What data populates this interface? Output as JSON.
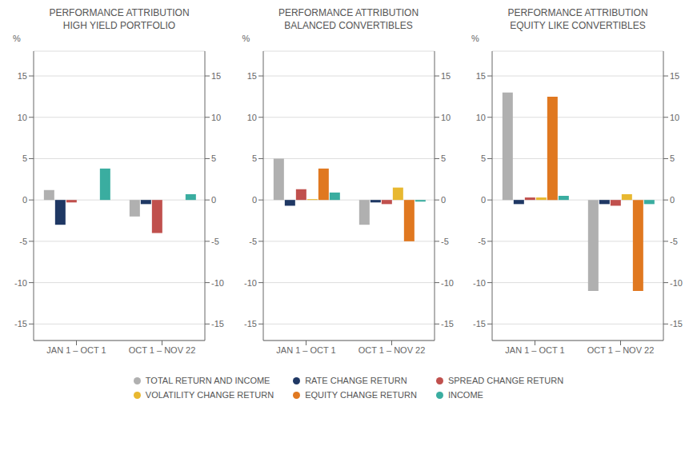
{
  "chart_data": [
    {
      "type": "bar",
      "title": "PERFORMANCE ATTRIBUTION\nHIGH YIELD PORTFOLIO",
      "ylabel": "%",
      "categories": [
        "JAN 1 – OCT 1",
        "OCT 1 – NOV 22"
      ],
      "series": [
        {
          "name": "TOTAL RETURN AND INCOME",
          "color": "#b0b0b0",
          "values": [
            1.2,
            -2.0
          ]
        },
        {
          "name": "RATE CHANGE RETURN",
          "color": "#1f3864",
          "values": [
            -3.0,
            -0.5
          ]
        },
        {
          "name": "SPREAD CHANGE RETURN",
          "color": "#c0504d",
          "values": [
            -0.3,
            -4.0
          ]
        },
        {
          "name": "VOLATILITY CHANGE RETURN",
          "color": "#e8b830",
          "values": [
            0.0,
            0.0
          ]
        },
        {
          "name": "EQUITY CHANGE RETURN",
          "color": "#e07820",
          "values": [
            0.0,
            0.0
          ]
        },
        {
          "name": "INCOME",
          "color": "#3aada0",
          "values": [
            3.8,
            0.7
          ]
        }
      ],
      "ylim": [
        -17,
        18
      ],
      "yticks": [
        -15,
        -10,
        -5,
        0,
        5,
        10,
        15
      ],
      "y2lim": [
        -17,
        18
      ],
      "y2ticks": [
        -15,
        -10,
        -5,
        0,
        5,
        10,
        15
      ],
      "grid": true,
      "legend": "bottom"
    },
    {
      "type": "bar",
      "title": "PERFORMANCE ATTRIBUTION\nBALANCED CONVERTIBLES",
      "ylabel": "%",
      "categories": [
        "JAN 1 – OCT 1",
        "OCT 1 – NOV 22"
      ],
      "series": [
        {
          "name": "TOTAL RETURN AND INCOME",
          "color": "#b0b0b0",
          "values": [
            5.0,
            -3.0
          ]
        },
        {
          "name": "RATE CHANGE RETURN",
          "color": "#1f3864",
          "values": [
            -0.7,
            -0.3
          ]
        },
        {
          "name": "SPREAD CHANGE RETURN",
          "color": "#c0504d",
          "values": [
            1.3,
            -0.5
          ]
        },
        {
          "name": "VOLATILITY CHANGE RETURN",
          "color": "#e8b830",
          "values": [
            0.1,
            1.5
          ]
        },
        {
          "name": "EQUITY CHANGE RETURN",
          "color": "#e07820",
          "values": [
            3.8,
            -5.0
          ]
        },
        {
          "name": "INCOME",
          "color": "#3aada0",
          "values": [
            0.9,
            -0.2
          ]
        }
      ],
      "ylim": [
        -17,
        18
      ],
      "yticks": [
        -15,
        -10,
        -5,
        0,
        5,
        10,
        15
      ],
      "y2lim": [
        -17,
        18
      ],
      "y2ticks": [
        -15,
        -10,
        -5,
        0,
        5,
        10,
        15
      ],
      "grid": true,
      "legend": "bottom"
    },
    {
      "type": "bar",
      "title": "PERFORMANCE ATTRIBUTION\nEQUITY LIKE CONVERTIBLES",
      "ylabel": "%",
      "categories": [
        "JAN 1 – OCT 1",
        "OCT 1 – NOV 22"
      ],
      "series": [
        {
          "name": "TOTAL RETURN AND INCOME",
          "color": "#b0b0b0",
          "values": [
            13.0,
            -11.0
          ]
        },
        {
          "name": "RATE CHANGE RETURN",
          "color": "#1f3864",
          "values": [
            -0.5,
            -0.5
          ]
        },
        {
          "name": "SPREAD CHANGE RETURN",
          "color": "#c0504d",
          "values": [
            0.3,
            -0.7
          ]
        },
        {
          "name": "VOLATILITY CHANGE RETURN",
          "color": "#e8b830",
          "values": [
            0.3,
            0.7
          ]
        },
        {
          "name": "EQUITY CHANGE RETURN",
          "color": "#e07820",
          "values": [
            12.5,
            -11.0
          ]
        },
        {
          "name": "INCOME",
          "color": "#3aada0",
          "values": [
            0.5,
            -0.5
          ]
        }
      ],
      "ylim": [
        -17,
        18
      ],
      "yticks": [
        -15,
        -10,
        -5,
        0,
        5,
        10,
        15
      ],
      "y2lim": [
        -17,
        18
      ],
      "y2ticks": [
        -15,
        -10,
        -5,
        0,
        5,
        10,
        15
      ],
      "grid": true,
      "legend": "bottom"
    }
  ]
}
